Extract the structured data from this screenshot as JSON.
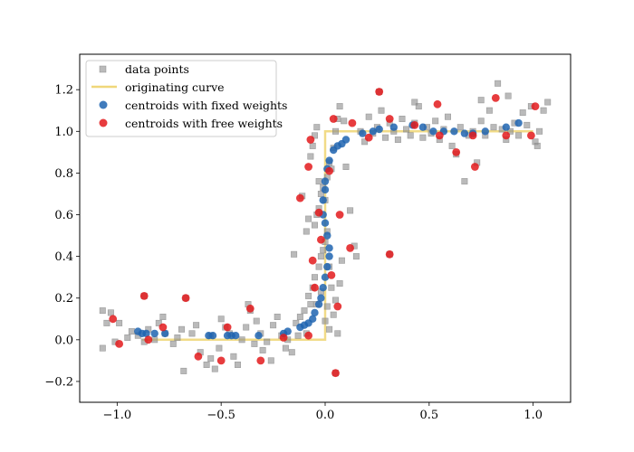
{
  "chart_data": {
    "type": "scatter",
    "title": "",
    "xlabel": "",
    "ylabel": "",
    "xlim": [
      -1.18,
      1.18
    ],
    "ylim": [
      -0.3,
      1.37
    ],
    "grid": false,
    "legend_position": "top-left",
    "x_ticks": [
      -1.0,
      -0.5,
      0.0,
      0.5,
      1.0
    ],
    "x_tick_labels": [
      "−1.0",
      "−0.5",
      "0.0",
      "0.5",
      "1.0"
    ],
    "y_ticks": [
      -0.2,
      0.0,
      0.2,
      0.4,
      0.6,
      0.8,
      1.0,
      1.2
    ],
    "y_tick_labels": [
      "−0.2",
      "0.0",
      "0.2",
      "0.4",
      "0.6",
      "0.8",
      "1.0",
      "1.2"
    ],
    "series": [
      {
        "name": "data points",
        "kind": "scatter",
        "marker": "square",
        "color": "#8c8c8c",
        "points": [
          [
            -1.07,
            0.14
          ],
          [
            -1.05,
            0.08
          ],
          [
            -1.03,
            0.13
          ],
          [
            -1.07,
            -0.04
          ],
          [
            -0.99,
            0.08
          ],
          [
            -1.01,
            -0.01
          ],
          [
            -0.95,
            0.01
          ],
          [
            -0.93,
            0.04
          ],
          [
            -0.9,
            0.02
          ],
          [
            -0.87,
            -0.01
          ],
          [
            -0.85,
            0.05
          ],
          [
            -0.82,
            0.0
          ],
          [
            -0.8,
            0.08
          ],
          [
            -0.78,
            0.11
          ],
          [
            -0.77,
            0.03
          ],
          [
            -0.73,
            -0.02
          ],
          [
            -0.71,
            0.01
          ],
          [
            -0.69,
            0.05
          ],
          [
            -0.68,
            -0.15
          ],
          [
            -0.64,
            0.03
          ],
          [
            -0.62,
            0.07
          ],
          [
            -0.6,
            -0.06
          ],
          [
            -0.57,
            -0.12
          ],
          [
            -0.55,
            0.02
          ],
          [
            -0.53,
            -0.14
          ],
          [
            -0.51,
            -0.04
          ],
          [
            -0.5,
            0.1
          ],
          [
            -0.48,
            0.06
          ],
          [
            -0.46,
            0.03
          ],
          [
            -0.44,
            -0.08
          ],
          [
            -0.42,
            -0.12
          ],
          [
            -0.4,
            0.0
          ],
          [
            -0.38,
            0.06
          ],
          [
            -0.37,
            0.17
          ],
          [
            -0.36,
            0.14
          ],
          [
            -0.34,
            -0.02
          ],
          [
            -0.33,
            0.09
          ],
          [
            -0.31,
            0.03
          ],
          [
            -0.3,
            -0.05
          ],
          [
            -0.28,
            -0.01
          ],
          [
            -0.26,
            -0.1
          ],
          [
            -0.25,
            0.07
          ],
          [
            -0.23,
            0.11
          ],
          [
            -0.21,
            0.02
          ],
          [
            -0.19,
            -0.04
          ],
          [
            -0.18,
            0.0
          ],
          [
            -0.16,
            -0.06
          ],
          [
            -0.14,
            0.08
          ],
          [
            -0.13,
            0.02
          ],
          [
            -0.12,
            0.11
          ],
          [
            -0.1,
            0.14
          ],
          [
            -0.09,
            0.03
          ],
          [
            -0.08,
            0.21
          ],
          [
            -0.07,
            0.17
          ],
          [
            -0.06,
            0.25
          ],
          [
            -0.05,
            0.3
          ],
          [
            -0.04,
            0.17
          ],
          [
            -0.03,
            0.35
          ],
          [
            -0.02,
            0.23
          ],
          [
            0.0,
            0.09
          ],
          [
            0.01,
            0.16
          ],
          [
            0.02,
            0.05
          ],
          [
            0.03,
            0.25
          ],
          [
            0.04,
            0.12
          ],
          [
            0.05,
            0.19
          ],
          [
            0.06,
            0.03
          ],
          [
            0.07,
            0.27
          ],
          [
            0.08,
            0.38
          ],
          [
            -0.02,
            0.4
          ],
          [
            -0.01,
            0.43
          ],
          [
            0.0,
            0.47
          ],
          [
            0.01,
            0.52
          ],
          [
            0.02,
            0.35
          ],
          [
            -0.05,
            0.55
          ],
          [
            -0.04,
            0.6
          ],
          [
            -0.03,
            0.63
          ],
          [
            -0.02,
            0.7
          ],
          [
            -0.01,
            0.73
          ],
          [
            0.0,
            0.67
          ],
          [
            0.01,
            0.78
          ],
          [
            0.02,
            0.85
          ],
          [
            0.03,
            0.82
          ],
          [
            -0.07,
            0.88
          ],
          [
            -0.06,
            0.93
          ],
          [
            -0.05,
            0.98
          ],
          [
            -0.04,
            1.02
          ],
          [
            -0.03,
            0.76
          ],
          [
            0.04,
            0.92
          ],
          [
            0.05,
            1.0
          ],
          [
            0.06,
            1.06
          ],
          [
            0.07,
            1.12
          ],
          [
            0.09,
            1.05
          ],
          [
            0.1,
            0.83
          ],
          [
            0.12,
            0.62
          ],
          [
            0.14,
            0.45
          ],
          [
            0.15,
            0.4
          ],
          [
            0.17,
            1.0
          ],
          [
            0.19,
            0.95
          ],
          [
            0.21,
            1.07
          ],
          [
            0.23,
            0.99
          ],
          [
            0.25,
            1.02
          ],
          [
            0.27,
            1.1
          ],
          [
            0.29,
            0.97
          ],
          [
            0.31,
            1.04
          ],
          [
            0.33,
            1.0
          ],
          [
            0.35,
            0.96
          ],
          [
            0.37,
            1.06
          ],
          [
            0.39,
            1.01
          ],
          [
            0.41,
            0.98
          ],
          [
            0.43,
            1.04
          ],
          [
            0.45,
            1.12
          ],
          [
            0.47,
            0.97
          ],
          [
            0.49,
            1.02
          ],
          [
            0.51,
            0.99
          ],
          [
            0.53,
            1.05
          ],
          [
            0.55,
            0.96
          ],
          [
            0.57,
            1.01
          ],
          [
            0.59,
            1.07
          ],
          [
            0.61,
            0.93
          ],
          [
            0.63,
            0.89
          ],
          [
            0.65,
            1.02
          ],
          [
            0.67,
            0.76
          ],
          [
            0.69,
            0.98
          ],
          [
            0.71,
            1.0
          ],
          [
            0.73,
            0.85
          ],
          [
            0.75,
            1.05
          ],
          [
            0.77,
            0.98
          ],
          [
            0.79,
            1.1
          ],
          [
            0.81,
            1.02
          ],
          [
            0.83,
            1.23
          ],
          [
            0.85,
            1.01
          ],
          [
            0.87,
            0.96
          ],
          [
            0.89,
            1.0
          ],
          [
            0.91,
            1.04
          ],
          [
            0.93,
            0.98
          ],
          [
            0.95,
            1.09
          ],
          [
            0.97,
            1.03
          ],
          [
            0.99,
            1.12
          ],
          [
            1.01,
            0.95
          ],
          [
            1.03,
            1.0
          ],
          [
            1.05,
            1.1
          ],
          [
            1.07,
            1.14
          ],
          [
            1.02,
            0.93
          ],
          [
            -0.15,
            0.41
          ],
          [
            -0.11,
            0.69
          ],
          [
            -0.09,
            0.52
          ],
          [
            -0.08,
            0.58
          ],
          [
            0.05,
            -0.16
          ],
          [
            0.31,
            0.41
          ],
          [
            0.26,
            1.19
          ],
          [
            -0.87,
            0.21
          ],
          [
            -0.67,
            0.2
          ],
          [
            0.43,
            1.14
          ],
          [
            0.75,
            1.15
          ],
          [
            0.88,
            1.17
          ],
          [
            -0.55,
            -0.09
          ]
        ]
      },
      {
        "name": "originating curve",
        "kind": "line",
        "color": "#f0d77a",
        "points": [
          [
            -0.88,
            0.0
          ],
          [
            0.0,
            0.0
          ],
          [
            0.0,
            1.0
          ],
          [
            1.0,
            1.0
          ]
        ]
      },
      {
        "name": "centroids with fixed weights",
        "kind": "scatter",
        "marker": "circle",
        "color": "#1f64b0",
        "points": [
          [
            -0.9,
            0.04
          ],
          [
            -0.88,
            0.03
          ],
          [
            -0.86,
            0.03
          ],
          [
            -0.82,
            0.03
          ],
          [
            -0.77,
            0.03
          ],
          [
            -0.56,
            0.02
          ],
          [
            -0.54,
            0.02
          ],
          [
            -0.47,
            0.02
          ],
          [
            -0.45,
            0.02
          ],
          [
            -0.43,
            0.02
          ],
          [
            -0.32,
            0.02
          ],
          [
            -0.2,
            0.03
          ],
          [
            -0.18,
            0.04
          ],
          [
            -0.12,
            0.06
          ],
          [
            -0.1,
            0.07
          ],
          [
            -0.08,
            0.08
          ],
          [
            -0.06,
            0.1
          ],
          [
            -0.05,
            0.13
          ],
          [
            -0.03,
            0.17
          ],
          [
            -0.02,
            0.2
          ],
          [
            -0.01,
            0.25
          ],
          [
            0.0,
            0.3
          ],
          [
            0.01,
            0.35
          ],
          [
            0.02,
            0.4
          ],
          [
            0.02,
            0.44
          ],
          [
            0.01,
            0.5
          ],
          [
            0.0,
            0.56
          ],
          [
            -0.01,
            0.6
          ],
          [
            -0.01,
            0.67
          ],
          [
            0.0,
            0.72
          ],
          [
            0.0,
            0.76
          ],
          [
            0.01,
            0.82
          ],
          [
            0.02,
            0.86
          ],
          [
            0.04,
            0.91
          ],
          [
            0.06,
            0.93
          ],
          [
            0.08,
            0.94
          ],
          [
            0.1,
            0.96
          ],
          [
            0.18,
            0.99
          ],
          [
            0.23,
            1.0
          ],
          [
            0.26,
            1.01
          ],
          [
            0.33,
            1.02
          ],
          [
            0.42,
            1.03
          ],
          [
            0.47,
            1.02
          ],
          [
            0.52,
            1.0
          ],
          [
            0.57,
            1.0
          ],
          [
            0.62,
            1.0
          ],
          [
            0.67,
            0.99
          ],
          [
            0.71,
            0.99
          ],
          [
            0.77,
            1.0
          ],
          [
            0.87,
            1.02
          ],
          [
            0.93,
            1.04
          ]
        ]
      },
      {
        "name": "centroids with free weights",
        "kind": "scatter",
        "marker": "circle",
        "color": "#e31a1c",
        "points": [
          [
            -1.02,
            0.1
          ],
          [
            -0.99,
            -0.02
          ],
          [
            -0.87,
            0.21
          ],
          [
            -0.85,
            0.0
          ],
          [
            -0.78,
            0.06
          ],
          [
            -0.67,
            0.2
          ],
          [
            -0.61,
            -0.08
          ],
          [
            -0.5,
            -0.1
          ],
          [
            -0.47,
            0.06
          ],
          [
            -0.36,
            0.15
          ],
          [
            -0.31,
            -0.1
          ],
          [
            -0.2,
            0.01
          ],
          [
            -0.08,
            0.02
          ],
          [
            -0.07,
            0.96
          ],
          [
            -0.08,
            0.83
          ],
          [
            -0.12,
            0.68
          ],
          [
            -0.06,
            0.38
          ],
          [
            -0.05,
            0.25
          ],
          [
            -0.03,
            0.61
          ],
          [
            -0.02,
            0.48
          ],
          [
            0.02,
            0.81
          ],
          [
            0.03,
            0.31
          ],
          [
            0.04,
            1.06
          ],
          [
            0.05,
            -0.16
          ],
          [
            0.06,
            0.16
          ],
          [
            0.07,
            0.6
          ],
          [
            0.12,
            0.44
          ],
          [
            0.13,
            1.04
          ],
          [
            0.21,
            0.97
          ],
          [
            0.26,
            1.19
          ],
          [
            0.31,
            1.06
          ],
          [
            0.31,
            0.41
          ],
          [
            0.43,
            1.03
          ],
          [
            0.54,
            1.13
          ],
          [
            0.55,
            0.98
          ],
          [
            0.63,
            0.9
          ],
          [
            0.71,
            0.98
          ],
          [
            0.72,
            0.83
          ],
          [
            0.82,
            1.16
          ],
          [
            0.87,
            0.98
          ],
          [
            0.99,
            0.98
          ],
          [
            1.01,
            1.12
          ]
        ]
      }
    ]
  }
}
